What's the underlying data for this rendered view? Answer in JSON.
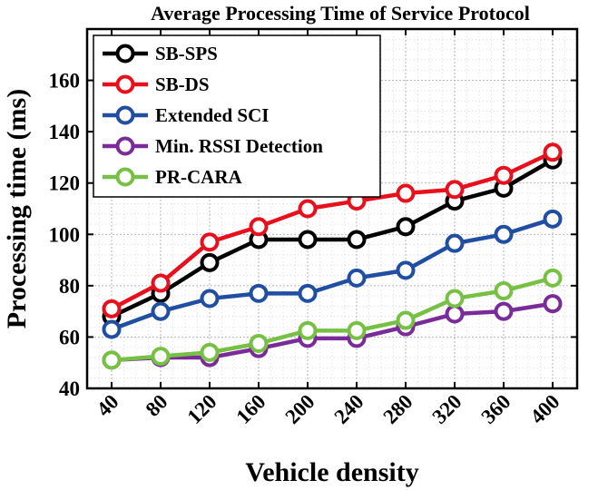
{
  "chart_data": {
    "type": "line",
    "title": "Average Processing Time of Service Protocol",
    "xlabel": "Vehicle density",
    "ylabel": "Processing time (ms)",
    "categories": [
      "40",
      "80",
      "120",
      "160",
      "200",
      "240",
      "280",
      "320",
      "360",
      "400"
    ],
    "ylim": [
      40,
      180
    ],
    "yticks": [
      "40",
      "60",
      "80",
      "100",
      "120",
      "140",
      "160"
    ],
    "grid": true,
    "legend_position": "top-left",
    "series": [
      {
        "name": "SB-SPS",
        "color": "#000000",
        "values": [
          68,
          77,
          89,
          98,
          98,
          98,
          103,
          113,
          118,
          129
        ]
      },
      {
        "name": "SB-DS",
        "color": "#e8101c",
        "values": [
          71,
          81,
          97,
          103,
          110,
          113,
          116,
          117.5,
          123,
          132
        ]
      },
      {
        "name": "Extended SCI",
        "color": "#1f4ea3",
        "values": [
          63,
          70,
          75,
          77,
          77,
          83,
          86,
          96.5,
          100,
          106
        ]
      },
      {
        "name": "Min. RSSI Detection",
        "color": "#7a2b99",
        "values": [
          51,
          52,
          52,
          55.5,
          59.5,
          59.5,
          64,
          69,
          70,
          73
        ]
      },
      {
        "name": "PR-CARA",
        "color": "#76c043",
        "values": [
          51,
          52.5,
          54,
          57.5,
          62.5,
          62.5,
          66.5,
          75,
          78,
          83
        ]
      }
    ]
  }
}
